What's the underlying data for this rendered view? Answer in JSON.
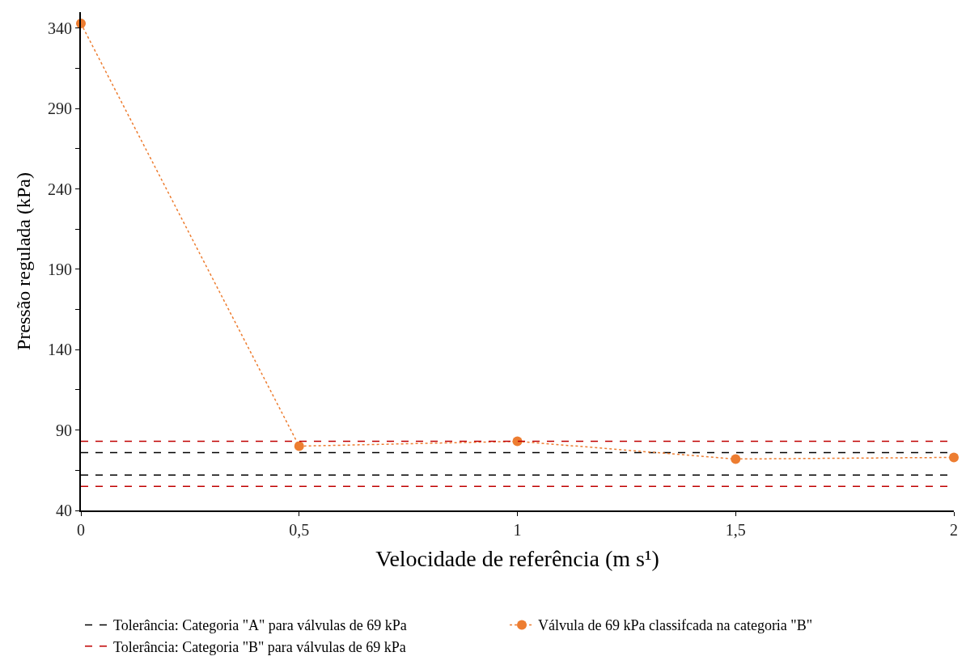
{
  "chart_data": {
    "type": "line",
    "xlabel": "Velocidade de referência (m s¹)",
    "ylabel": "Pressão regulada (kPa)",
    "x": [
      0,
      0.5,
      1,
      1.5,
      2
    ],
    "series": [
      {
        "name": "Válvula de 69 kPa classifcada na categoria \"B\"",
        "color": "#ed7d31",
        "values": [
          343,
          80,
          83,
          72,
          73
        ],
        "line_style": "dotted",
        "marker": "circle"
      }
    ],
    "ref_lines": [
      {
        "axis": "y",
        "value": 76,
        "label": "Tolerância: Categoria \"A\" para válvulas de 69 kPa",
        "color": "#000000",
        "line_style": "dashed"
      },
      {
        "axis": "y",
        "value": 83,
        "label": "Tolerância: Categoria \"B\" para válvulas de 69 kPa",
        "color": "#c00000",
        "line_style": "dashed"
      },
      {
        "axis": "y",
        "value": 62,
        "color": "#000000",
        "line_style": "dashed"
      },
      {
        "axis": "y",
        "value": 55,
        "color": "#c00000",
        "line_style": "dashed"
      }
    ],
    "xlim": [
      0,
      2
    ],
    "xticks": [
      0,
      {
        "value": 0.5,
        "label": "0,5"
      },
      1,
      {
        "value": 1.5,
        "label": "1,5"
      },
      2
    ],
    "ylim": [
      40,
      350
    ],
    "yticks": [
      40,
      {
        "value": 65,
        "label": null
      },
      90,
      {
        "value": 115,
        "label": null
      },
      140,
      {
        "value": 165,
        "label": null
      },
      190,
      {
        "value": 215,
        "label": null
      },
      240,
      {
        "value": 265,
        "label": null
      },
      290,
      {
        "value": 315,
        "label": null
      },
      340
    ],
    "legend": "bottom"
  }
}
